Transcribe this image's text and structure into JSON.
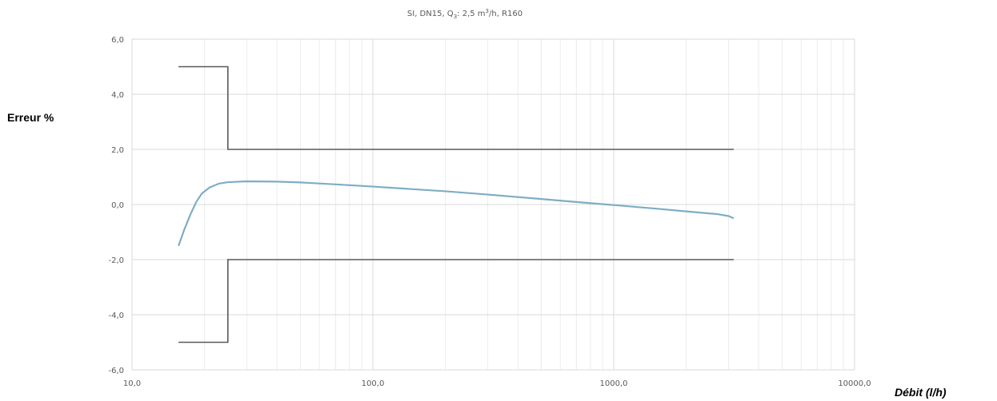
{
  "chart_data": {
    "type": "line",
    "title_parts": {
      "pre": "SI, DN15, Q",
      "sub": "3",
      "mid": ": 2,5 m",
      "sup": "3",
      "post": "/h, R160"
    },
    "ylabel": "Erreur %",
    "xlabel": "Débit (l/h)",
    "x_scale": "log",
    "xlim": [
      10,
      10000
    ],
    "ylim": [
      -6,
      6
    ],
    "x_ticks": [
      10,
      100,
      1000,
      10000
    ],
    "x_tick_labels": [
      "10,0",
      "100,0",
      "1000,0",
      "10000,0"
    ],
    "y_ticks": [
      6,
      4,
      2,
      0,
      -2,
      -4,
      -6
    ],
    "y_tick_labels": [
      "6,0",
      "4,0",
      "2,0",
      "0,0",
      "-2,0",
      "-4,0",
      "-6,0"
    ],
    "grid": "major and minor (log)",
    "series": [
      {
        "color": "#7eadc4",
        "points": [
          [
            15.6,
            -1.5
          ],
          [
            16.5,
            -0.9
          ],
          [
            17.5,
            -0.35
          ],
          [
            18.5,
            0.1
          ],
          [
            19.5,
            0.4
          ],
          [
            21,
            0.62
          ],
          [
            23,
            0.76
          ],
          [
            25,
            0.81
          ],
          [
            30,
            0.84
          ],
          [
            40,
            0.83
          ],
          [
            50,
            0.8
          ],
          [
            70,
            0.73
          ],
          [
            100,
            0.65
          ],
          [
            200,
            0.48
          ],
          [
            300,
            0.36
          ],
          [
            500,
            0.2
          ],
          [
            700,
            0.09
          ],
          [
            1000,
            -0.02
          ],
          [
            1500,
            -0.15
          ],
          [
            2000,
            -0.25
          ],
          [
            2700,
            -0.35
          ],
          [
            3000,
            -0.42
          ],
          [
            3150,
            -0.5
          ]
        ]
      },
      {
        "color": "#595959",
        "points": [
          [
            15.6,
            5
          ],
          [
            25,
            5
          ],
          [
            25,
            2
          ],
          [
            3150,
            2
          ]
        ]
      },
      {
        "color": "#595959",
        "points": [
          [
            15.6,
            -5
          ],
          [
            25,
            -5
          ],
          [
            25,
            -2
          ],
          [
            3150,
            -2
          ]
        ]
      }
    ]
  }
}
